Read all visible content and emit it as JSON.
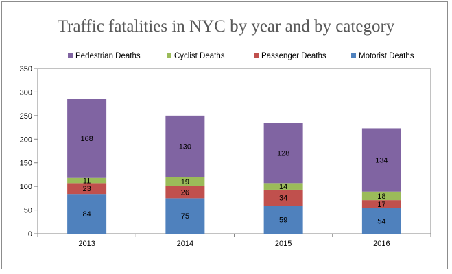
{
  "chart_data": {
    "type": "bar",
    "stacked": true,
    "title": "Traffic fatalities in NYC by year and by category",
    "categories": [
      "2013",
      "2014",
      "2015",
      "2016"
    ],
    "series": [
      {
        "name": "Motorist Deaths",
        "color": "#4f81bd",
        "values": [
          84,
          75,
          59,
          54
        ]
      },
      {
        "name": "Passenger Deaths",
        "color": "#c0504d",
        "values": [
          23,
          26,
          34,
          17
        ]
      },
      {
        "name": "Cyclist Deaths",
        "color": "#9bbb59",
        "values": [
          11,
          19,
          14,
          18
        ]
      },
      {
        "name": "Pedestrian Deaths",
        "color": "#8064a2",
        "values": [
          168,
          130,
          128,
          134
        ]
      }
    ],
    "legend_order": [
      "Pedestrian Deaths",
      "Cyclist Deaths",
      "Passenger Deaths",
      "Motorist Deaths"
    ],
    "yticks": [
      0,
      50,
      100,
      150,
      200,
      250,
      300,
      350
    ],
    "ylim": [
      0,
      350
    ],
    "legend_position": "top",
    "grid": false,
    "data_labels": true
  }
}
